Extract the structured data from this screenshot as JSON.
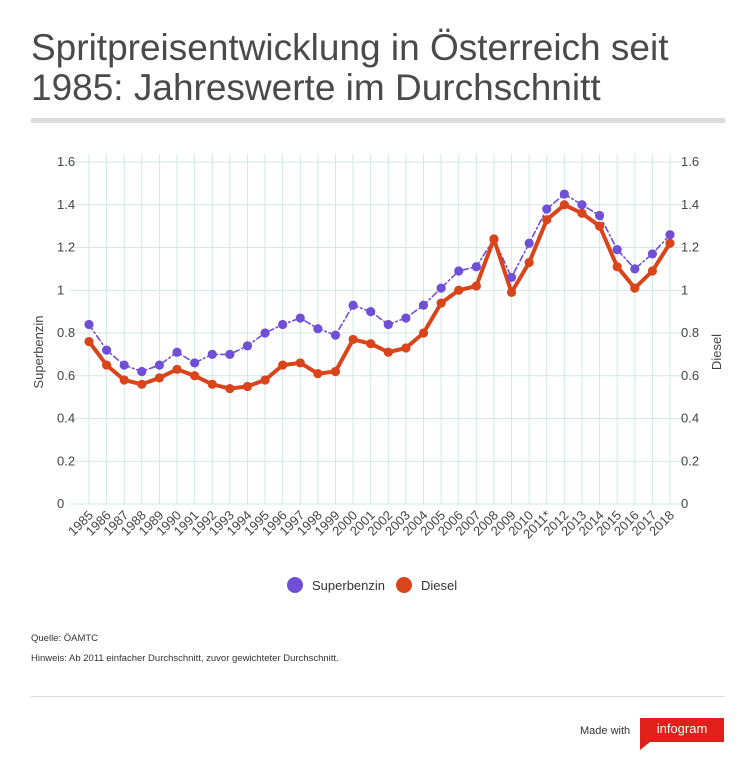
{
  "title": "Spritpreisentwicklung in Österreich seit 1985: Jahreswerte im Durchschnitt",
  "chart_data": {
    "type": "line",
    "x": [
      "1985",
      "1986",
      "1987",
      "1988",
      "1989",
      "1990",
      "1991",
      "1992",
      "1993",
      "1994",
      "1995",
      "1996",
      "1997",
      "1998",
      "1999",
      "2000",
      "2001",
      "2002",
      "2003",
      "2004",
      "2005",
      "2006",
      "2007",
      "2008",
      "2009",
      "2010",
      "2011*",
      "2012",
      "2013",
      "2014",
      "2015",
      "2016",
      "2017",
      "2018"
    ],
    "series": [
      {
        "name": "Superbenzin",
        "color": "#6e4fd6",
        "style": "dash-dot",
        "values": [
          0.84,
          0.72,
          0.65,
          0.62,
          0.65,
          0.71,
          0.66,
          0.7,
          0.7,
          0.74,
          0.8,
          0.84,
          0.87,
          0.82,
          0.79,
          0.93,
          0.9,
          0.84,
          0.87,
          0.93,
          1.01,
          1.09,
          1.11,
          1.24,
          1.06,
          1.22,
          1.38,
          1.45,
          1.4,
          1.35,
          1.19,
          1.1,
          1.17,
          1.26
        ]
      },
      {
        "name": "Diesel",
        "color": "#d9441b",
        "style": "solid",
        "values": [
          0.76,
          0.65,
          0.58,
          0.56,
          0.59,
          0.63,
          0.6,
          0.56,
          0.54,
          0.55,
          0.58,
          0.65,
          0.66,
          0.61,
          0.62,
          0.77,
          0.75,
          0.71,
          0.73,
          0.8,
          0.94,
          1.0,
          1.02,
          1.24,
          0.99,
          1.13,
          1.33,
          1.4,
          1.36,
          1.3,
          1.11,
          1.01,
          1.09,
          1.22
        ]
      }
    ],
    "yticks": [
      "0",
      "0.2",
      "0.4",
      "0.6",
      "0.8",
      "1",
      "1.2",
      "1.4",
      "1.6"
    ],
    "ylim": [
      0,
      1.6
    ],
    "ylabel_left": "Superbenzin",
    "ylabel_right": "Diesel",
    "grid": true,
    "legend": "bottom-center"
  },
  "legend": {
    "items": [
      {
        "label": "Superbenzin",
        "color": "#6e4fd6"
      },
      {
        "label": "Diesel",
        "color": "#d9441b"
      }
    ]
  },
  "notes": {
    "source": "Quelle:  ÖAMTC",
    "hint": "Hinweis: Ab 2011 einfacher Durchschnitt, zuvor gewichteter Durchschnitt."
  },
  "footer": {
    "made_with": "Made with",
    "brand": "infogram"
  }
}
